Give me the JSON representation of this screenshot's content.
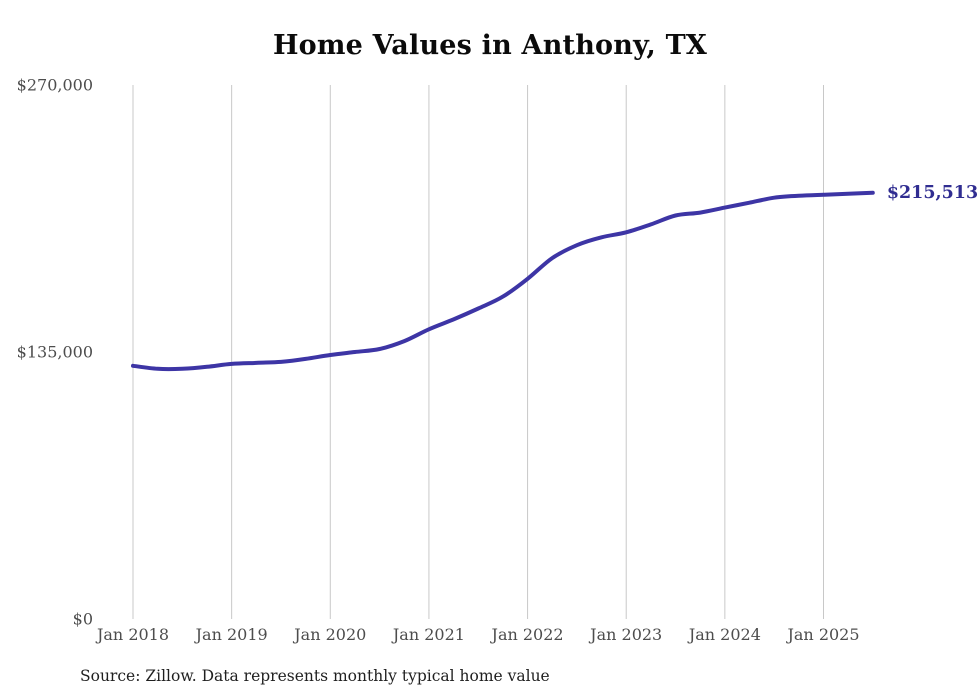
{
  "page": {
    "title": "Home Values in Anthony, TX",
    "source_note": "Source: Zillow. Data represents monthly typical home value"
  },
  "colors": {
    "line": "#3d35a5",
    "final_label": "#302d91",
    "gridline": "#c8c8c8",
    "axis_label": "#4d4d4d",
    "title": "#0b0b0b",
    "source": "#1f1f1f",
    "background": "#ffffff"
  },
  "chart_data": {
    "type": "line",
    "title": "Home Values in Anthony, TX",
    "xlabel": "",
    "ylabel": "",
    "ylim": [
      0,
      270000
    ],
    "grid": "vertical",
    "legend": "none",
    "y_ticks": [
      {
        "value": 0,
        "label": "$0"
      },
      {
        "value": 135000,
        "label": "$135,000"
      },
      {
        "value": 270000,
        "label": "$270,000"
      }
    ],
    "x_ticks": [
      {
        "month": "2018-01",
        "label": "Jan 2018"
      },
      {
        "month": "2019-01",
        "label": "Jan 2019"
      },
      {
        "month": "2020-01",
        "label": "Jan 2020"
      },
      {
        "month": "2021-01",
        "label": "Jan 2021"
      },
      {
        "month": "2022-01",
        "label": "Jan 2022"
      },
      {
        "month": "2023-01",
        "label": "Jan 2023"
      },
      {
        "month": "2024-01",
        "label": "Jan 2024"
      },
      {
        "month": "2025-01",
        "label": "Jan 2025"
      }
    ],
    "series": [
      {
        "name": "Typical home value",
        "points": [
          {
            "month": "2018-01",
            "value": 128000
          },
          {
            "month": "2018-04",
            "value": 126500
          },
          {
            "month": "2018-07",
            "value": 126500
          },
          {
            "month": "2018-10",
            "value": 127500
          },
          {
            "month": "2019-01",
            "value": 129000
          },
          {
            "month": "2019-04",
            "value": 129500
          },
          {
            "month": "2019-07",
            "value": 130000
          },
          {
            "month": "2019-10",
            "value": 131500
          },
          {
            "month": "2020-01",
            "value": 133500
          },
          {
            "month": "2020-04",
            "value": 135000
          },
          {
            "month": "2020-07",
            "value": 136500
          },
          {
            "month": "2020-10",
            "value": 140500
          },
          {
            "month": "2021-01",
            "value": 146500
          },
          {
            "month": "2021-04",
            "value": 151500
          },
          {
            "month": "2021-07",
            "value": 157000
          },
          {
            "month": "2021-10",
            "value": 163000
          },
          {
            "month": "2022-01",
            "value": 172000
          },
          {
            "month": "2022-04",
            "value": 182500
          },
          {
            "month": "2022-07",
            "value": 189000
          },
          {
            "month": "2022-10",
            "value": 193000
          },
          {
            "month": "2023-01",
            "value": 195500
          },
          {
            "month": "2023-04",
            "value": 199500
          },
          {
            "month": "2023-07",
            "value": 204000
          },
          {
            "month": "2023-10",
            "value": 205500
          },
          {
            "month": "2024-01",
            "value": 208000
          },
          {
            "month": "2024-04",
            "value": 210500
          },
          {
            "month": "2024-07",
            "value": 213000
          },
          {
            "month": "2024-10",
            "value": 214000
          },
          {
            "month": "2025-01",
            "value": 214500
          },
          {
            "month": "2025-04",
            "value": 215000
          },
          {
            "month": "2025-07",
            "value": 215513
          }
        ]
      }
    ],
    "final_value": 215513,
    "final_value_label": "$215,513"
  }
}
